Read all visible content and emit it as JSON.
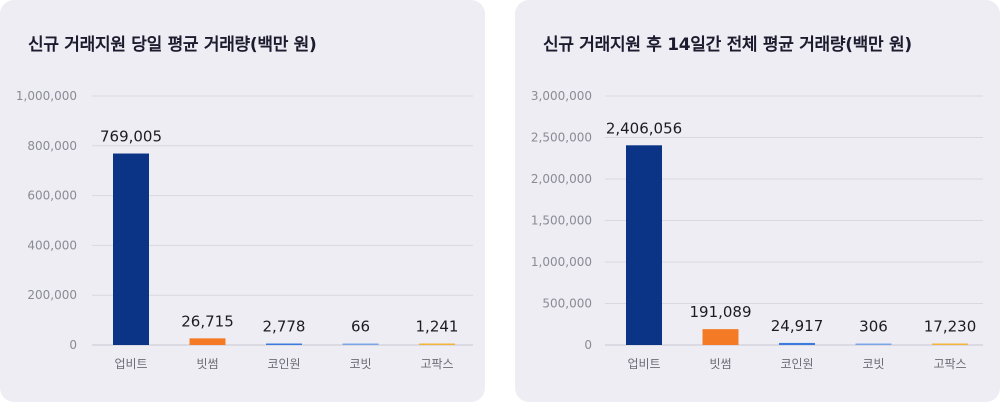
{
  "chart_data": [
    {
      "type": "bar",
      "title": "신규 거래지원 당일 평균 거래량(백만 원)",
      "categories": [
        "업비트",
        "빗썸",
        "코인원",
        "코빗",
        "고팍스"
      ],
      "values": [
        769005,
        26715,
        2778,
        66,
        1241
      ],
      "value_labels": [
        "769,005",
        "26,715",
        "2,778",
        "66",
        "1,241"
      ],
      "colors": [
        "#0b3487",
        "#f57a26",
        "#3b7be0",
        "#7aa6e8",
        "#f2b53a"
      ],
      "ylim": [
        0,
        1000000
      ],
      "yticks": [
        0,
        200000,
        400000,
        600000,
        800000,
        1000000
      ],
      "ytick_labels": [
        "0",
        "200,000",
        "400,000",
        "600,000",
        "800,000",
        "1,000,000"
      ],
      "xlabel": "",
      "ylabel": "",
      "grid": true,
      "legend": "none"
    },
    {
      "type": "bar",
      "title": "신규 거래지원 후 14일간 전체 평균 거래량(백만 원)",
      "categories": [
        "업비트",
        "빗썸",
        "코인원",
        "코빗",
        "고팍스"
      ],
      "values": [
        2406056,
        191089,
        24917,
        306,
        17230
      ],
      "value_labels": [
        "2,406,056",
        "191,089",
        "24,917",
        "306",
        "17,230"
      ],
      "colors": [
        "#0b3487",
        "#f57a26",
        "#3b7be0",
        "#7aa6e8",
        "#f2b53a"
      ],
      "ylim": [
        0,
        3000000
      ],
      "yticks": [
        0,
        500000,
        1000000,
        1500000,
        2000000,
        2500000,
        3000000
      ],
      "ytick_labels": [
        "0",
        "500,000",
        "1,000,000",
        "1,500,000",
        "2,000,000",
        "2,500,000",
        "3,000,000"
      ],
      "xlabel": "",
      "ylabel": "",
      "grid": true,
      "legend": "none"
    }
  ]
}
